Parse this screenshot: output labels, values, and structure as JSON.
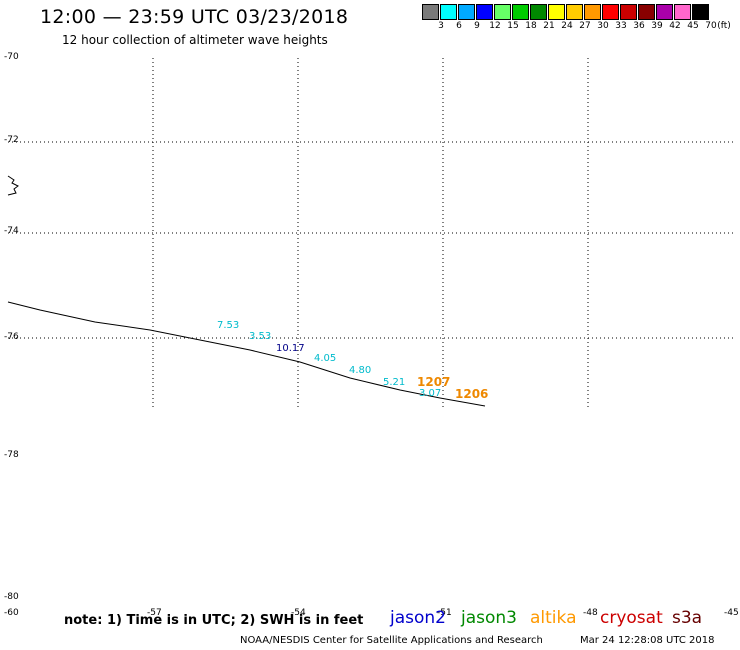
{
  "header": {
    "title": "12:00 — 23:59 UTC 03/23/2018",
    "subtitle": "12 hour collection of altimeter wave heights"
  },
  "color_scale": {
    "unit_label": "(ft)",
    "bins": [
      {
        "label": "3",
        "color": "#7a7a7a"
      },
      {
        "label": "6",
        "color": "#00ffff"
      },
      {
        "label": "9",
        "color": "#00aaff"
      },
      {
        "label": "12",
        "color": "#0000ff"
      },
      {
        "label": "15",
        "color": "#66ff66"
      },
      {
        "label": "18",
        "color": "#00cc00"
      },
      {
        "label": "21",
        "color": "#008800"
      },
      {
        "label": "24",
        "color": "#ffff00"
      },
      {
        "label": "27",
        "color": "#ffcc00"
      },
      {
        "label": "30",
        "color": "#ff9900"
      },
      {
        "label": "33",
        "color": "#ff0000"
      },
      {
        "label": "36",
        "color": "#cc0000"
      },
      {
        "label": "39",
        "color": "#880000"
      },
      {
        "label": "42",
        "color": "#aa00aa"
      },
      {
        "label": "45",
        "color": "#ff66cc"
      },
      {
        "label": "70",
        "color": "#000000"
      }
    ]
  },
  "map": {
    "lat_labels": [
      "-70",
      "-72",
      "-74",
      "-76",
      "-78",
      "-80"
    ],
    "lon_labels": [
      "-60",
      "-57",
      "-54",
      "-51",
      "-48",
      "-45"
    ],
    "wave_heights": [
      {
        "value": "7.53",
        "color": "#00bbcc",
        "size": "normal"
      },
      {
        "value": "3.53",
        "color": "#00bbcc",
        "size": "normal"
      },
      {
        "value": "10.17",
        "color": "#000088",
        "size": "normal"
      },
      {
        "value": "4.05",
        "color": "#00bbcc",
        "size": "normal"
      },
      {
        "value": "4.80",
        "color": "#00bbcc",
        "size": "normal"
      },
      {
        "value": "5.21",
        "color": "#00bbcc",
        "size": "normal"
      },
      {
        "value": "1207",
        "color": "#ee8800",
        "size": "big"
      },
      {
        "value": "3.07",
        "color": "#00bbcc",
        "size": "normal"
      },
      {
        "value": "1206",
        "color": "#ee8800",
        "size": "big"
      }
    ]
  },
  "footer": {
    "note": "note: 1) Time is in UTC; 2) SWH is in feet",
    "satellites": [
      {
        "name": "jason2",
        "color": "#0000cc"
      },
      {
        "name": "jason3",
        "color": "#008800"
      },
      {
        "name": "altika",
        "color": "#ff9900"
      },
      {
        "name": "cryosat",
        "color": "#cc0000"
      },
      {
        "name": "s3a",
        "color": "#660000"
      }
    ],
    "credit": "NOAA/NESDIS Center for Satellite Applications and Research",
    "timestamp": "Mar 24 12:28:08 UTC 2018"
  }
}
